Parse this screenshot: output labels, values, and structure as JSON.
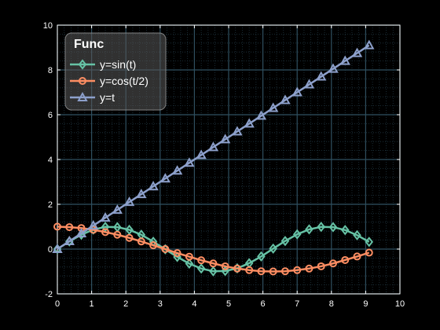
{
  "chart_data": {
    "type": "line",
    "xlim": [
      0,
      10
    ],
    "ylim": [
      -2,
      10
    ],
    "x_ticks": [
      "0",
      "1",
      "2",
      "3",
      "4",
      "5",
      "6",
      "7",
      "8",
      "9",
      "10"
    ],
    "y_ticks": [
      "-2",
      "0",
      "2",
      "4",
      "6",
      "8",
      "10"
    ],
    "grid": true,
    "minor_grid": true,
    "legend": {
      "title": "Func",
      "placement": "top-left"
    },
    "colors": {
      "background": "#000000",
      "grid": "#2f4f5f",
      "axes": "#ffffff"
    },
    "x": [
      0,
      0.35,
      0.7,
      1.05,
      1.4,
      1.75,
      2.1,
      2.45,
      2.8,
      3.15,
      3.5,
      3.85,
      4.2,
      4.55,
      4.9,
      5.25,
      5.6,
      5.95,
      6.3,
      6.65,
      7.0,
      7.35,
      7.7,
      8.05,
      8.4,
      8.75,
      9.1
    ],
    "series": [
      {
        "name": "y=sin(t)",
        "color": "#66c2a5",
        "marker": "diamond",
        "values": [
          0,
          0.34,
          0.64,
          0.87,
          0.99,
          0.98,
          0.86,
          0.64,
          0.33,
          -0.01,
          -0.35,
          -0.65,
          -0.87,
          -0.99,
          -0.98,
          -0.86,
          -0.63,
          -0.33,
          0.02,
          0.36,
          0.66,
          0.88,
          0.99,
          0.98,
          0.85,
          0.62,
          0.32
        ]
      },
      {
        "name": "y=cos(t/2)",
        "color": "#fc8d62",
        "marker": "circle",
        "values": [
          1,
          0.98,
          0.94,
          0.86,
          0.76,
          0.64,
          0.5,
          0.34,
          0.17,
          0,
          -0.18,
          -0.34,
          -0.5,
          -0.64,
          -0.77,
          -0.87,
          -0.94,
          -0.99,
          -1.0,
          -0.99,
          -0.94,
          -0.87,
          -0.77,
          -0.64,
          -0.49,
          -0.33,
          -0.16
        ]
      },
      {
        "name": "y=t",
        "color": "#8da0cb",
        "marker": "triangle",
        "values": [
          0,
          0.35,
          0.7,
          1.05,
          1.4,
          1.75,
          2.1,
          2.45,
          2.8,
          3.15,
          3.5,
          3.85,
          4.2,
          4.55,
          4.9,
          5.25,
          5.6,
          5.95,
          6.3,
          6.65,
          7.0,
          7.35,
          7.7,
          8.05,
          8.4,
          8.75,
          9.1
        ]
      }
    ]
  }
}
